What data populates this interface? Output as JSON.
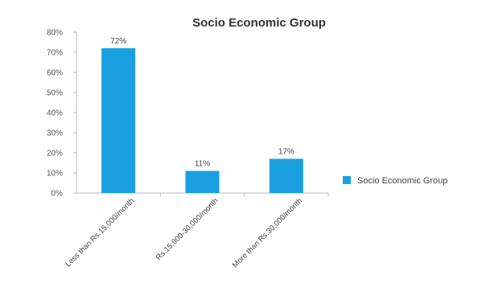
{
  "chart_data": {
    "type": "bar",
    "title": "Socio Economic Group",
    "xlabel": "",
    "ylabel": "",
    "categories": [
      "Less than Rs.15,000/month",
      "Rs.15,000-30,000/month",
      "More than Rs.30,000/month"
    ],
    "series": [
      {
        "name": "Socio Economic Group",
        "values": [
          72,
          11,
          17
        ],
        "data_labels": [
          "72%",
          "11%",
          "17%"
        ],
        "color": "#1a9fe0"
      }
    ],
    "ylim": [
      0,
      80
    ],
    "yticks": [
      0,
      10,
      20,
      30,
      40,
      50,
      60,
      70,
      80
    ],
    "ytick_labels": [
      "0%",
      "10%",
      "20%",
      "30%",
      "40%",
      "50%",
      "60%",
      "70%",
      "80%"
    ],
    "grid": false,
    "legend": "right"
  }
}
